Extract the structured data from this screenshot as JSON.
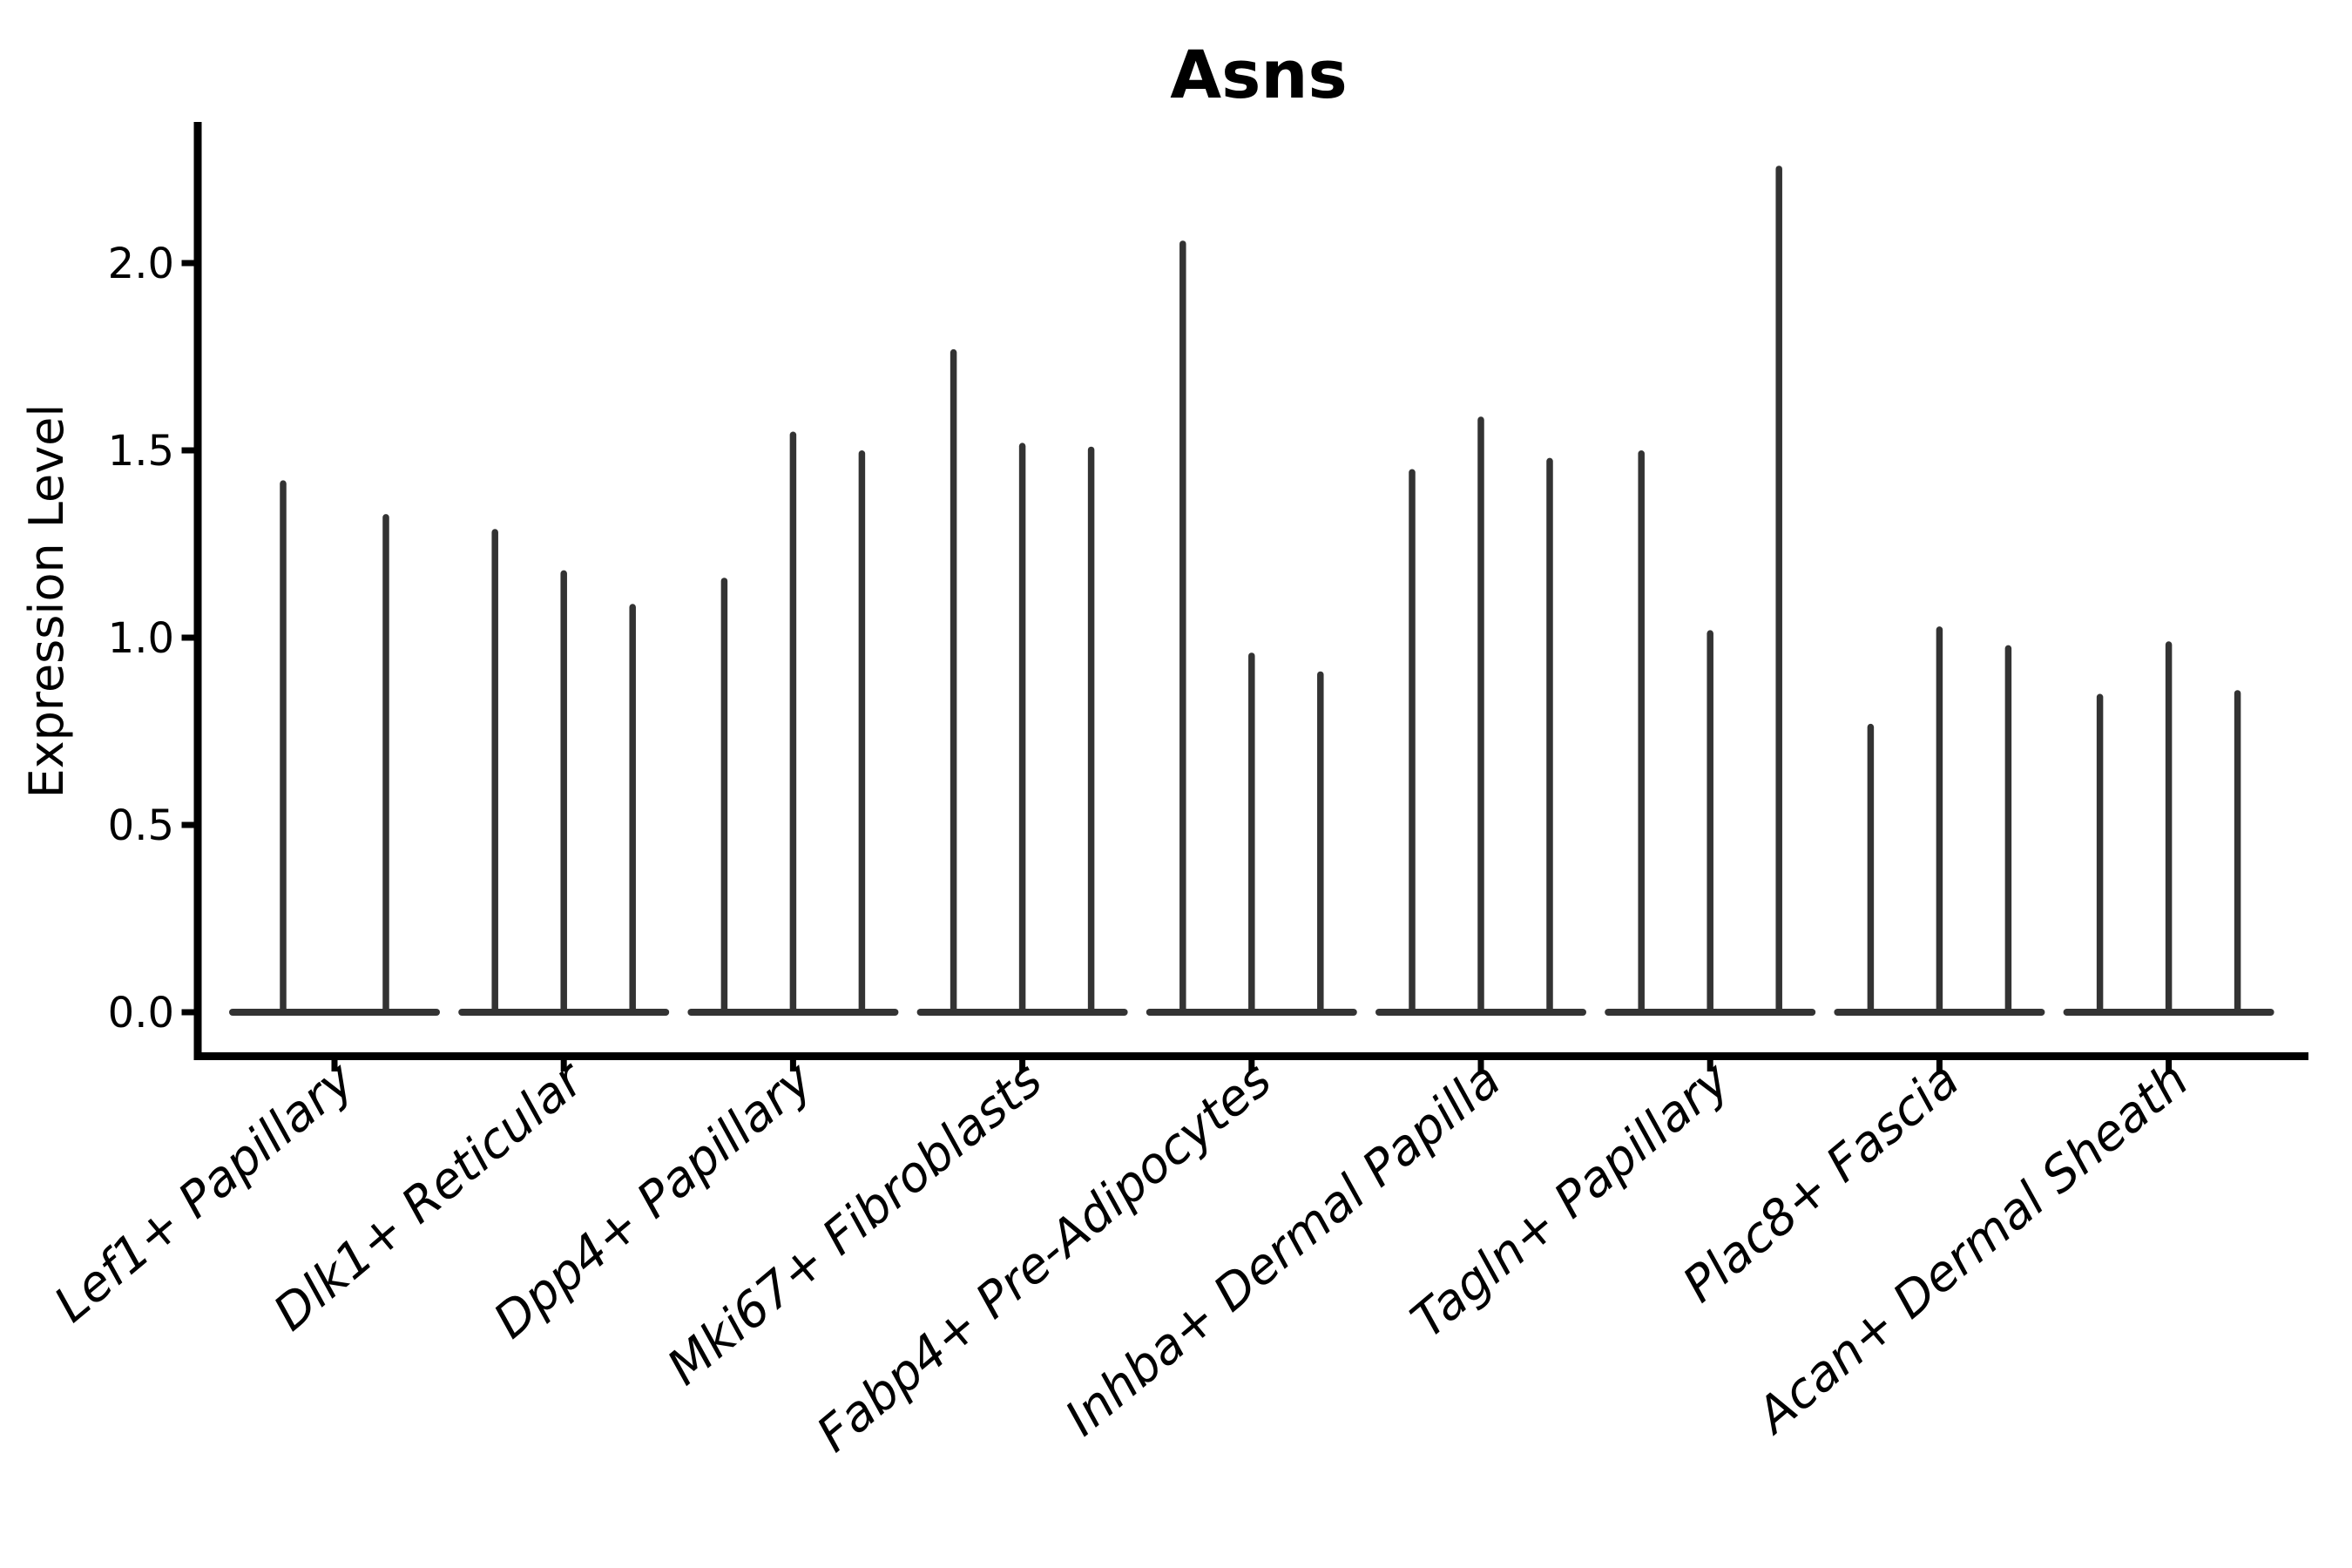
{
  "chart_data": {
    "type": "violin",
    "title": "Asns",
    "xlabel": "",
    "ylabel": "Expression Level",
    "ytick_values": [
      0.0,
      0.5,
      1.0,
      1.5,
      2.0
    ],
    "ytick_labels": [
      "0.0",
      "0.5",
      "1.0",
      "1.5",
      "2.0"
    ],
    "ylim": [
      -0.1,
      2.38
    ],
    "grid": false,
    "legend": null,
    "background_color": "#ffffff",
    "axis_color": "#000000",
    "violin_color": "#333333",
    "description": "Needle-thin violin plot of Asns expression; each cell-type group contains 2-3 narrow violins collapsed at 0 with a thin spike rising to the maximum expression value.",
    "categories": [
      "Lef1+ Papillary",
      "Dlk1+ Reticular",
      "Dpp4+ Papillary",
      "Mki67+ Fibroblasts",
      "Fabp4+ Pre-Adipocytes",
      "Inhba+ Dermal Papilla",
      "Tagln+ Papillary",
      "Plac8+ Fascia",
      "Acan+ Dermal Sheath"
    ],
    "series": [
      {
        "category": "Lef1+ Papillary",
        "violin_maxima": [
          1.42,
          1.33
        ]
      },
      {
        "category": "Dlk1+ Reticular",
        "violin_maxima": [
          1.29,
          1.18,
          1.09
        ]
      },
      {
        "category": "Dpp4+ Papillary",
        "violin_maxima": [
          1.16,
          1.55,
          1.5
        ]
      },
      {
        "category": "Mki67+ Fibroblasts",
        "violin_maxima": [
          1.77,
          1.52,
          1.51
        ]
      },
      {
        "category": "Fabp4+ Pre-Adipocytes",
        "violin_maxima": [
          2.06,
          0.96,
          0.91
        ]
      },
      {
        "category": "Inhba+ Dermal Papilla",
        "violin_maxima": [
          1.45,
          1.59,
          1.48
        ]
      },
      {
        "category": "Tagln+ Papillary",
        "violin_maxima": [
          1.5,
          1.02,
          2.26
        ]
      },
      {
        "category": "Plac8+ Fascia",
        "violin_maxima": [
          0.77,
          1.03,
          0.98
        ]
      },
      {
        "category": "Acan+ Dermal Sheath",
        "violin_maxima": [
          0.85,
          0.99,
          0.86
        ]
      }
    ]
  }
}
